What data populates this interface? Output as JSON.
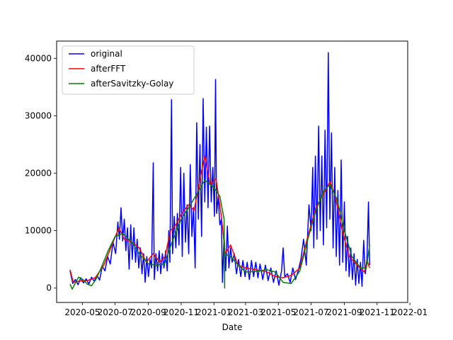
{
  "chart_data": {
    "type": "line",
    "xlabel": "Date",
    "ylabel": "",
    "ylim": [
      -2500,
      43000
    ],
    "xlim": [
      "2020-03-14",
      "2021-12-28"
    ],
    "x_ticks": [
      "2020-05",
      "2020-07",
      "2020-09",
      "2020-11",
      "2021-01",
      "2021-03",
      "2021-05",
      "2021-07",
      "2021-09",
      "2021-11",
      "2022-01"
    ],
    "x_tick_dates": [
      "2020-05-01",
      "2020-07-01",
      "2020-09-01",
      "2020-11-01",
      "2021-01-01",
      "2021-03-01",
      "2021-05-01",
      "2021-07-01",
      "2021-09-01",
      "2021-11-01",
      "2022-01-01"
    ],
    "y_ticks": [
      0,
      10000,
      20000,
      30000,
      40000
    ],
    "y_tick_labels": [
      "0",
      "10000",
      "20000",
      "30000",
      "40000"
    ],
    "legend": {
      "placement": "upper-left",
      "entries": [
        "original",
        "afterFFT",
        "afterSavitzky-Golay"
      ]
    },
    "grid": false,
    "series": [
      {
        "name": "original",
        "color": "#0000ff",
        "points": [
          [
            "2020-04-08",
            3000
          ],
          [
            "2020-04-13",
            800
          ],
          [
            "2020-04-18",
            1500
          ],
          [
            "2020-04-23",
            600
          ],
          [
            "2020-04-28",
            1800
          ],
          [
            "2020-05-03",
            900
          ],
          [
            "2020-05-08",
            1600
          ],
          [
            "2020-05-13",
            700
          ],
          [
            "2020-05-18",
            1900
          ],
          [
            "2020-05-23",
            1200
          ],
          [
            "2020-05-28",
            2200
          ],
          [
            "2020-06-02",
            1400
          ],
          [
            "2020-06-07",
            3800
          ],
          [
            "2020-06-12",
            3000
          ],
          [
            "2020-06-17",
            5500
          ],
          [
            "2020-06-22",
            4200
          ],
          [
            "2020-06-27",
            8000
          ],
          [
            "2020-07-02",
            6000
          ],
          [
            "2020-07-06",
            11500
          ],
          [
            "2020-07-09",
            8500
          ],
          [
            "2020-07-12",
            14000
          ],
          [
            "2020-07-15",
            8200
          ],
          [
            "2020-07-18",
            12000
          ],
          [
            "2020-07-21",
            6500
          ],
          [
            "2020-07-24",
            10500
          ],
          [
            "2020-07-27",
            3300
          ],
          [
            "2020-07-30",
            11000
          ],
          [
            "2020-08-02",
            5000
          ],
          [
            "2020-08-05",
            10500
          ],
          [
            "2020-08-08",
            4500
          ],
          [
            "2020-08-11",
            8500
          ],
          [
            "2020-08-14",
            3500
          ],
          [
            "2020-08-17",
            7000
          ],
          [
            "2020-08-20",
            2500
          ],
          [
            "2020-08-23",
            6000
          ],
          [
            "2020-08-26",
            1000
          ],
          [
            "2020-08-29",
            5500
          ],
          [
            "2020-09-01",
            2000
          ],
          [
            "2020-09-04",
            5000
          ],
          [
            "2020-09-07",
            3500
          ],
          [
            "2020-09-10",
            21800
          ],
          [
            "2020-09-12",
            1500
          ],
          [
            "2020-09-15",
            6000
          ],
          [
            "2020-09-18",
            3000
          ],
          [
            "2020-09-21",
            6500
          ],
          [
            "2020-09-24",
            2500
          ],
          [
            "2020-09-27",
            6000
          ],
          [
            "2020-09-30",
            3500
          ],
          [
            "2020-10-03",
            6500
          ],
          [
            "2020-10-06",
            3000
          ],
          [
            "2020-10-09",
            10000
          ],
          [
            "2020-10-11",
            4500
          ],
          [
            "2020-10-14",
            32800
          ],
          [
            "2020-10-16",
            6000
          ],
          [
            "2020-10-19",
            12500
          ],
          [
            "2020-10-22",
            7000
          ],
          [
            "2020-10-25",
            13000
          ],
          [
            "2020-10-28",
            7500
          ],
          [
            "2020-10-31",
            21000
          ],
          [
            "2020-11-03",
            5500
          ],
          [
            "2020-11-06",
            20000
          ],
          [
            "2020-11-09",
            8000
          ],
          [
            "2020-11-12",
            14500
          ],
          [
            "2020-11-15",
            6000
          ],
          [
            "2020-11-18",
            21500
          ],
          [
            "2020-11-21",
            9000
          ],
          [
            "2020-11-24",
            14000
          ],
          [
            "2020-11-27",
            3500
          ],
          [
            "2020-11-30",
            28800
          ],
          [
            "2020-12-03",
            12000
          ],
          [
            "2020-12-06",
            25000
          ],
          [
            "2020-12-09",
            9000
          ],
          [
            "2020-12-12",
            33000
          ],
          [
            "2020-12-15",
            15000
          ],
          [
            "2020-12-18",
            28000
          ],
          [
            "2020-12-21",
            14000
          ],
          [
            "2020-12-24",
            28200
          ],
          [
            "2020-12-27",
            15000
          ],
          [
            "2020-12-30",
            21000
          ],
          [
            "2021-01-02",
            12500
          ],
          [
            "2021-01-04",
            36300
          ],
          [
            "2021-01-06",
            13000
          ],
          [
            "2021-01-09",
            16000
          ],
          [
            "2021-01-12",
            11000
          ],
          [
            "2021-01-15",
            12000
          ],
          [
            "2021-01-17",
            1000
          ],
          [
            "2021-01-20",
            9000
          ],
          [
            "2021-01-23",
            3000
          ],
          [
            "2021-01-26",
            10800
          ],
          [
            "2021-01-29",
            3500
          ],
          [
            "2021-02-01",
            7000
          ],
          [
            "2021-02-04",
            4500
          ],
          [
            "2021-02-08",
            6000
          ],
          [
            "2021-02-12",
            2500
          ],
          [
            "2021-02-16",
            5000
          ],
          [
            "2021-02-20",
            2000
          ],
          [
            "2021-02-24",
            4800
          ],
          [
            "2021-02-28",
            2000
          ],
          [
            "2021-03-04",
            4500
          ],
          [
            "2021-03-08",
            1500
          ],
          [
            "2021-03-12",
            4800
          ],
          [
            "2021-03-16",
            2000
          ],
          [
            "2021-03-20",
            4500
          ],
          [
            "2021-03-24",
            1800
          ],
          [
            "2021-03-28",
            4200
          ],
          [
            "2021-04-02",
            1500
          ],
          [
            "2021-04-07",
            4000
          ],
          [
            "2021-04-12",
            1300
          ],
          [
            "2021-04-17",
            3500
          ],
          [
            "2021-04-22",
            1000
          ],
          [
            "2021-04-27",
            3000
          ],
          [
            "2021-05-02",
            500
          ],
          [
            "2021-05-07",
            3000
          ],
          [
            "2021-05-10",
            7000
          ],
          [
            "2021-05-13",
            2000
          ],
          [
            "2021-05-18",
            2500
          ],
          [
            "2021-05-23",
            1000
          ],
          [
            "2021-05-28",
            3500
          ],
          [
            "2021-06-02",
            1500
          ],
          [
            "2021-06-07",
            3000
          ],
          [
            "2021-06-12",
            5000
          ],
          [
            "2021-06-17",
            8500
          ],
          [
            "2021-06-22",
            4000
          ],
          [
            "2021-06-27",
            14500
          ],
          [
            "2021-07-01",
            10000
          ],
          [
            "2021-07-04",
            21000
          ],
          [
            "2021-07-06",
            7000
          ],
          [
            "2021-07-09",
            23000
          ],
          [
            "2021-07-12",
            8500
          ],
          [
            "2021-07-15",
            28200
          ],
          [
            "2021-07-18",
            10000
          ],
          [
            "2021-07-21",
            23000
          ],
          [
            "2021-07-24",
            7500
          ],
          [
            "2021-07-27",
            27500
          ],
          [
            "2021-07-30",
            10500
          ],
          [
            "2021-08-02",
            41000
          ],
          [
            "2021-08-05",
            12000
          ],
          [
            "2021-08-08",
            27000
          ],
          [
            "2021-08-11",
            7000
          ],
          [
            "2021-08-14",
            21000
          ],
          [
            "2021-08-17",
            5500
          ],
          [
            "2021-08-20",
            17000
          ],
          [
            "2021-08-23",
            4000
          ],
          [
            "2021-08-26",
            22300
          ],
          [
            "2021-08-29",
            4500
          ],
          [
            "2021-09-01",
            15000
          ],
          [
            "2021-09-04",
            3000
          ],
          [
            "2021-09-07",
            9000
          ],
          [
            "2021-09-10",
            2000
          ],
          [
            "2021-09-13",
            7000
          ],
          [
            "2021-09-16",
            1500
          ],
          [
            "2021-09-19",
            6000
          ],
          [
            "2021-09-22",
            500
          ],
          [
            "2021-09-25",
            5000
          ],
          [
            "2021-09-28",
            800
          ],
          [
            "2021-10-01",
            4500
          ],
          [
            "2021-10-04",
            300
          ],
          [
            "2021-10-07",
            8300
          ],
          [
            "2021-10-10",
            2500
          ],
          [
            "2021-10-13",
            5000
          ],
          [
            "2021-10-16",
            15000
          ],
          [
            "2021-10-18",
            4000
          ]
        ]
      },
      {
        "name": "afterFFT",
        "color": "#ff0000",
        "points": [
          [
            "2020-04-08",
            3200
          ],
          [
            "2020-04-14",
            1000
          ],
          [
            "2020-04-24",
            1200
          ],
          [
            "2020-05-10",
            1300
          ],
          [
            "2020-05-25",
            1800
          ],
          [
            "2020-06-10",
            4000
          ],
          [
            "2020-06-25",
            7500
          ],
          [
            "2020-07-08",
            10500
          ],
          [
            "2020-07-18",
            8500
          ],
          [
            "2020-08-01",
            8000
          ],
          [
            "2020-08-15",
            7000
          ],
          [
            "2020-08-28",
            4500
          ],
          [
            "2020-09-10",
            6000
          ],
          [
            "2020-09-22",
            4500
          ],
          [
            "2020-10-02",
            5500
          ],
          [
            "2020-10-12",
            10000
          ],
          [
            "2020-10-22",
            11000
          ],
          [
            "2020-11-02",
            13000
          ],
          [
            "2020-11-15",
            14500
          ],
          [
            "2020-11-25",
            13500
          ],
          [
            "2020-12-05",
            18500
          ],
          [
            "2020-12-15",
            23000
          ],
          [
            "2020-12-25",
            18000
          ],
          [
            "2021-01-05",
            19000
          ],
          [
            "2021-01-15",
            12500
          ],
          [
            "2021-01-22",
            6000
          ],
          [
            "2021-02-01",
            7500
          ],
          [
            "2021-02-15",
            4000
          ],
          [
            "2021-03-01",
            3500
          ],
          [
            "2021-03-20",
            3200
          ],
          [
            "2021-04-10",
            2800
          ],
          [
            "2021-04-25",
            2000
          ],
          [
            "2021-05-10",
            1800
          ],
          [
            "2021-05-25",
            2200
          ],
          [
            "2021-06-10",
            3500
          ],
          [
            "2021-06-25",
            9000
          ],
          [
            "2021-07-10",
            14000
          ],
          [
            "2021-07-25",
            16500
          ],
          [
            "2021-08-05",
            18500
          ],
          [
            "2021-08-15",
            16000
          ],
          [
            "2021-08-28",
            10000
          ],
          [
            "2021-09-10",
            5500
          ],
          [
            "2021-09-25",
            4000
          ],
          [
            "2021-10-08",
            2800
          ],
          [
            "2021-10-14",
            4600
          ],
          [
            "2021-10-18",
            3500
          ]
        ]
      },
      {
        "name": "afterSavitzky-Golay",
        "color": "#008000",
        "points": [
          [
            "2020-04-08",
            700
          ],
          [
            "2020-04-12",
            -200
          ],
          [
            "2020-04-18",
            900
          ],
          [
            "2020-04-24",
            1900
          ],
          [
            "2020-05-02",
            1500
          ],
          [
            "2020-05-10",
            700
          ],
          [
            "2020-05-18",
            400
          ],
          [
            "2020-05-26",
            1500
          ],
          [
            "2020-06-05",
            3500
          ],
          [
            "2020-06-18",
            6500
          ],
          [
            "2020-07-01",
            9000
          ],
          [
            "2020-07-15",
            9500
          ],
          [
            "2020-08-01",
            8000
          ],
          [
            "2020-08-15",
            6000
          ],
          [
            "2020-09-01",
            4200
          ],
          [
            "2020-09-15",
            4000
          ],
          [
            "2020-10-01",
            4200
          ],
          [
            "2020-10-15",
            8000
          ],
          [
            "2020-11-01",
            12000
          ],
          [
            "2020-11-15",
            14000
          ],
          [
            "2020-12-01",
            16500
          ],
          [
            "2020-12-15",
            18800
          ],
          [
            "2021-01-01",
            17500
          ],
          [
            "2021-01-12",
            16000
          ],
          [
            "2021-01-20",
            12000
          ],
          [
            "2021-01-21",
            0
          ],
          [
            "2021-01-21",
            6000
          ],
          [
            "2021-02-01",
            5500
          ],
          [
            "2021-02-15",
            4000
          ],
          [
            "2021-03-01",
            2800
          ],
          [
            "2021-03-20",
            2900
          ],
          [
            "2021-04-10",
            3200
          ],
          [
            "2021-04-25",
            2800
          ],
          [
            "2021-05-10",
            1000
          ],
          [
            "2021-05-25",
            800
          ],
          [
            "2021-06-10",
            3000
          ],
          [
            "2021-06-25",
            8500
          ],
          [
            "2021-07-10",
            13500
          ],
          [
            "2021-07-25",
            17000
          ],
          [
            "2021-08-05",
            18000
          ],
          [
            "2021-08-18",
            15500
          ],
          [
            "2021-09-01",
            10000
          ],
          [
            "2021-09-15",
            5500
          ],
          [
            "2021-10-01",
            3500
          ],
          [
            "2021-10-12",
            3500
          ],
          [
            "2021-10-18",
            7500
          ]
        ]
      }
    ]
  }
}
